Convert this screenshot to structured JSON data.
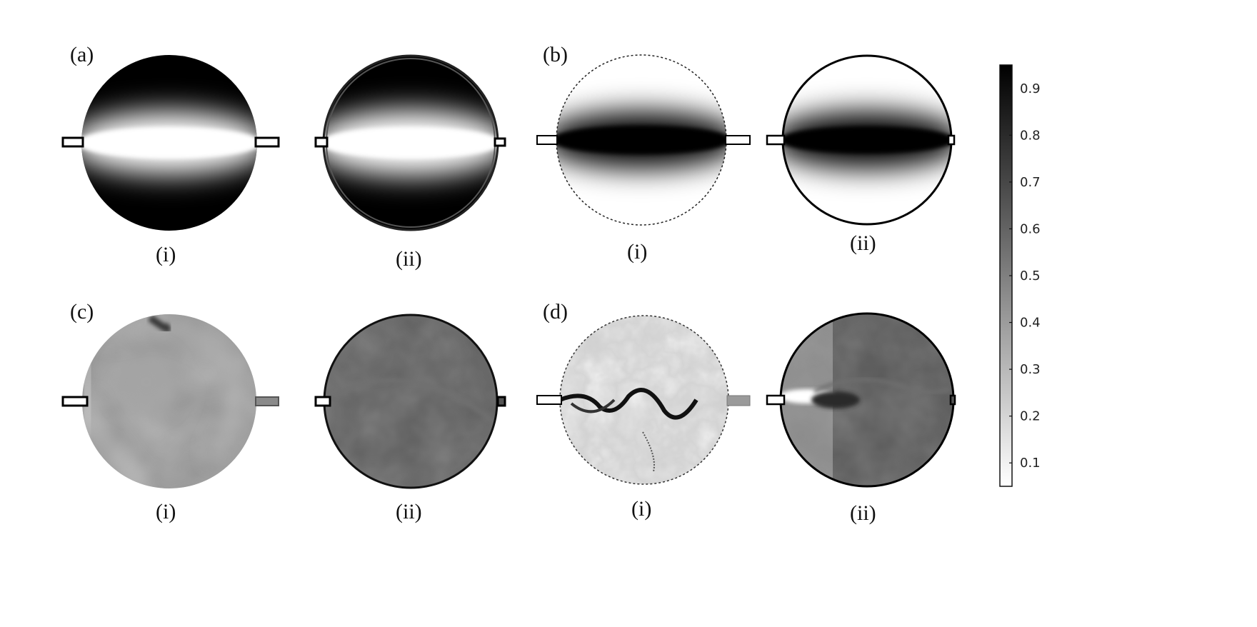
{
  "panels": [
    {
      "id": "a",
      "label": "(a)",
      "subplots": [
        {
          "label": "(i)",
          "style": "jet-white-on-black"
        },
        {
          "label": "(ii)",
          "style": "jet-white-on-black-rim"
        }
      ]
    },
    {
      "id": "b",
      "label": "(b)",
      "subplots": [
        {
          "label": "(i)",
          "style": "jet-black-on-white-dashed"
        },
        {
          "label": "(ii)",
          "style": "jet-black-on-white-solid"
        }
      ]
    },
    {
      "id": "c",
      "label": "(c)",
      "subplots": [
        {
          "label": "(i)",
          "style": "mixed-swirl"
        },
        {
          "label": "(ii)",
          "style": "mixed-uniform"
        }
      ]
    },
    {
      "id": "d",
      "label": "(d)",
      "subplots": [
        {
          "label": "(i)",
          "style": "turbulent"
        },
        {
          "label": "(ii)",
          "style": "turbulent-jet-split"
        }
      ]
    }
  ],
  "colorbar": {
    "range": [
      0.05,
      0.95
    ],
    "ticks": [
      "0.9",
      "0.8",
      "0.7",
      "0.6",
      "0.5",
      "0.4",
      "0.3",
      "0.2",
      "0.1"
    ],
    "tick_values": [
      0.9,
      0.8,
      0.7,
      0.6,
      0.5,
      0.4,
      0.3,
      0.2,
      0.1
    ],
    "color_low": "#ffffff",
    "color_high": "#000000"
  }
}
